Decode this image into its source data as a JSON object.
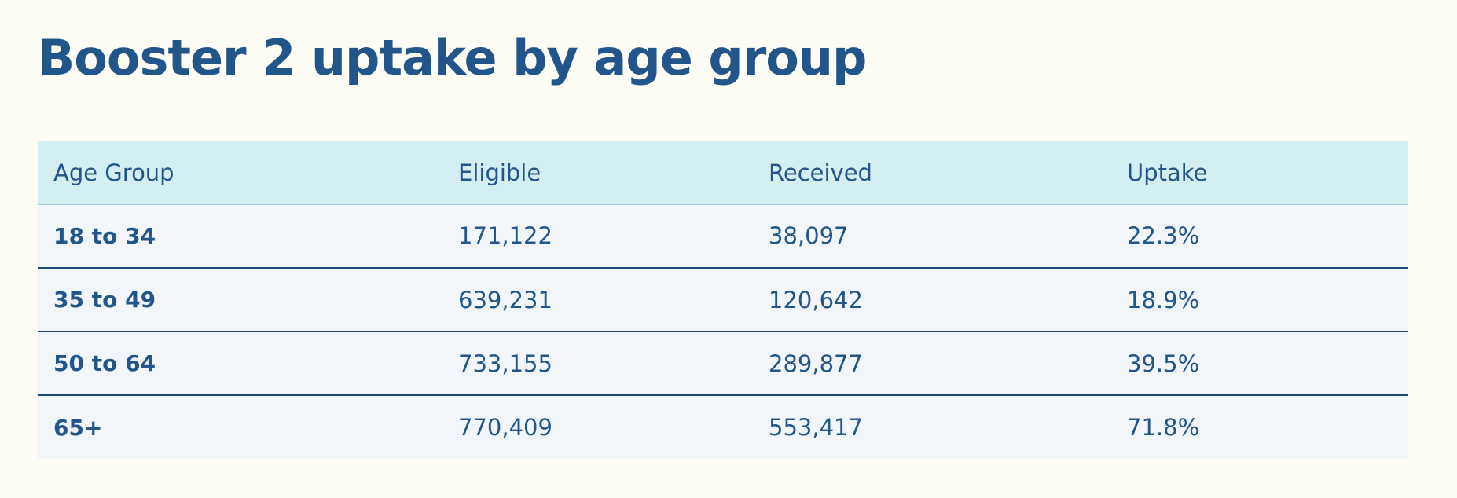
{
  "chart_data": {
    "type": "table",
    "title": "Booster 2 uptake by age group",
    "columns": [
      "Age Group",
      "Eligible",
      "Received",
      "Uptake"
    ],
    "rows": [
      [
        "18 to 34",
        "171,122",
        "38,097",
        "22.3%"
      ],
      [
        "35 to 49",
        "639,231",
        "120,642",
        "18.9%"
      ],
      [
        "50 to 64",
        "733,155",
        "289,877",
        "39.5%"
      ],
      [
        "65+",
        "770,409",
        "553,417",
        "71.8%"
      ]
    ]
  },
  "colors": {
    "title": "#22568a",
    "header_background": "#d3eff2",
    "row_background": "#f2f6fa",
    "row_divider": "#1f4a77",
    "page_background": "#fdfdf5"
  }
}
